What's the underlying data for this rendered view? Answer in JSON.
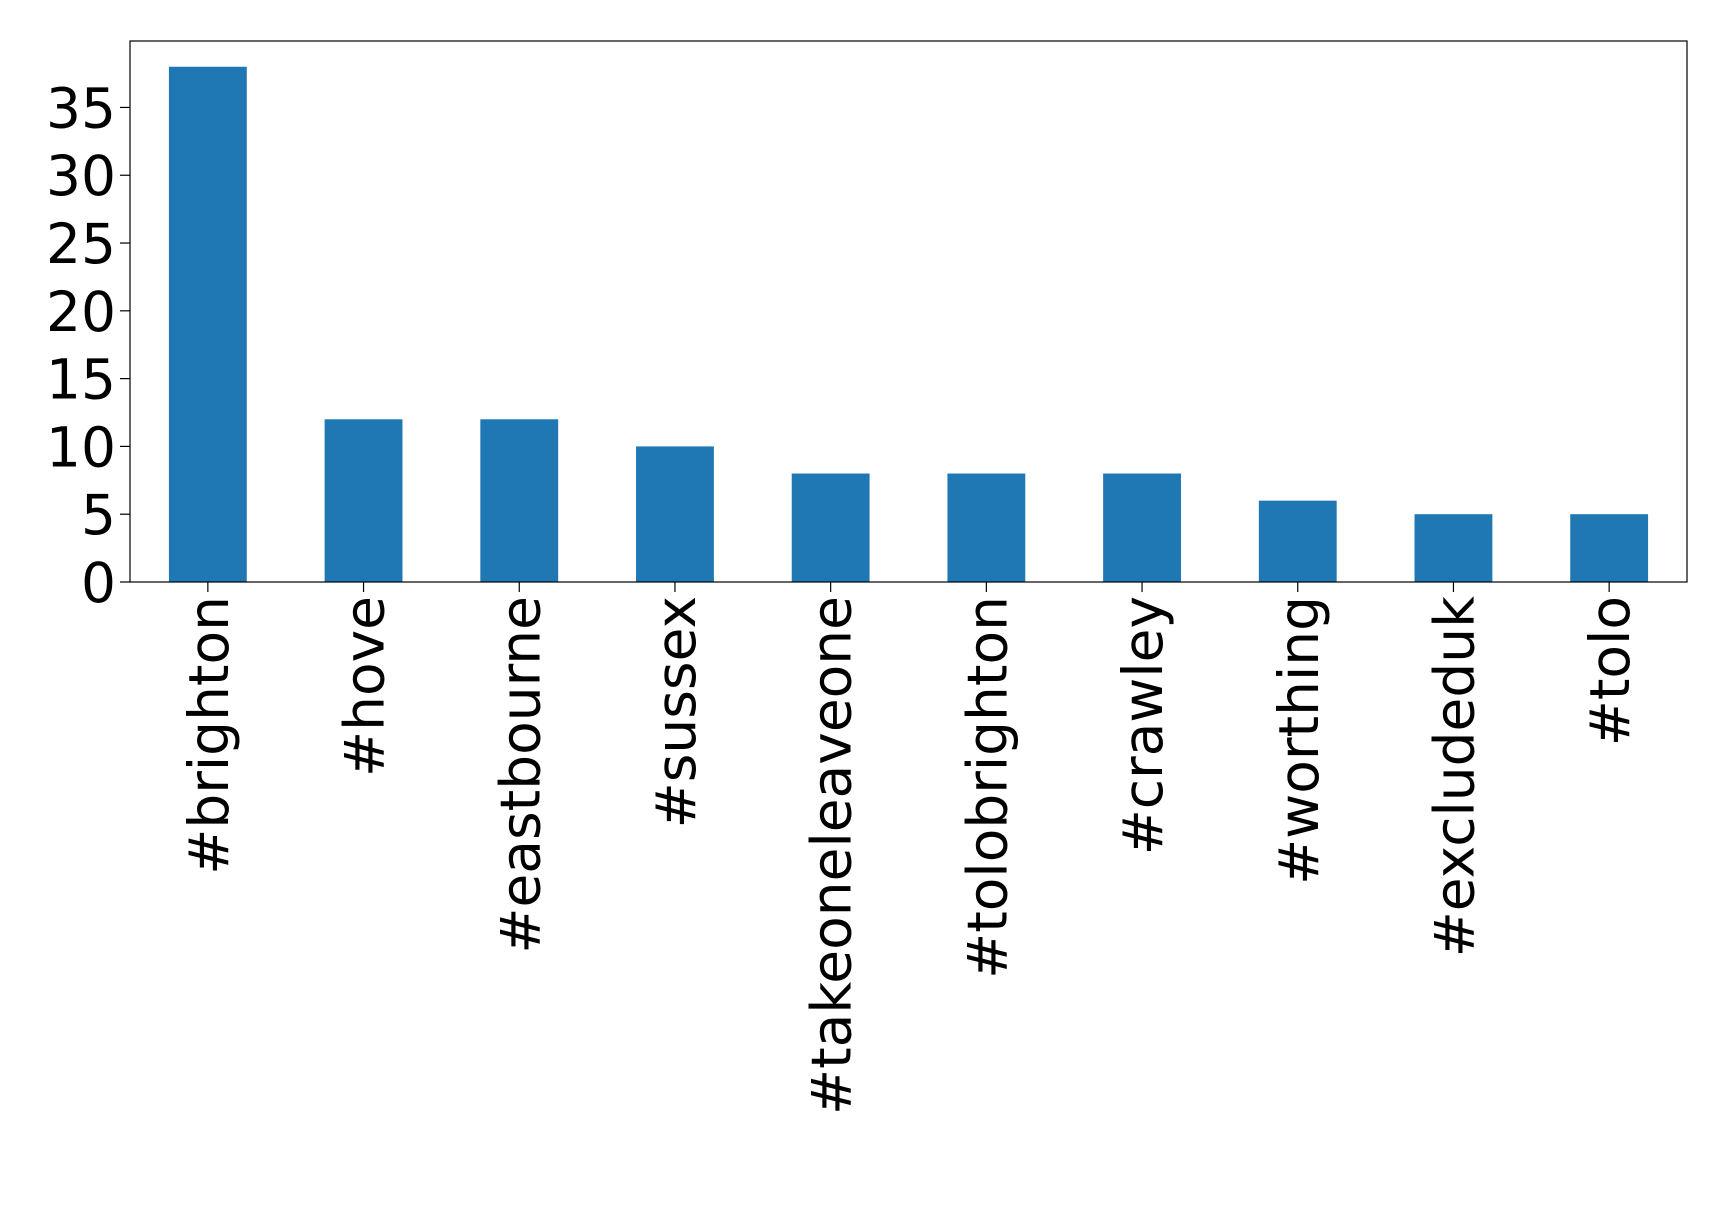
{
  "chart_data": {
    "type": "bar",
    "categories": [
      "#brighton",
      "#hove",
      "#eastbourne",
      "#sussex",
      "#takeoneleaveone",
      "#tolobrighton",
      "#crawley",
      "#worthing",
      "#excludeduk",
      "#tolo"
    ],
    "values": [
      38,
      12,
      12,
      10,
      8,
      8,
      8,
      6,
      5,
      5
    ],
    "color": "#1f77b4",
    "ylim": [
      0,
      39.9
    ],
    "yticks": [
      0,
      5,
      10,
      15,
      20,
      25,
      30,
      35
    ],
    "grid": false
  }
}
